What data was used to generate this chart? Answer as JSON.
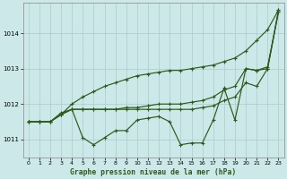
{
  "title": "Graphe pression niveau de la mer (hPa)",
  "bg_color": "#cce8e8",
  "grid_color": "#aacccc",
  "line_color": "#2d5a1b",
  "ylim": [
    1010.5,
    1014.85
  ],
  "yticks": [
    1011,
    1012,
    1013,
    1014
  ],
  "hours": [
    0,
    1,
    2,
    3,
    4,
    5,
    6,
    7,
    8,
    9,
    10,
    11,
    12,
    13,
    14,
    15,
    16,
    17,
    18,
    19,
    20,
    21,
    22,
    23
  ],
  "line_straight": [
    1011.5,
    1011.5,
    1011.5,
    1011.7,
    1012.0,
    1012.2,
    1012.35,
    1012.5,
    1012.6,
    1012.7,
    1012.8,
    1012.85,
    1012.9,
    1012.95,
    1012.95,
    1013.0,
    1013.05,
    1013.1,
    1013.2,
    1013.3,
    1013.5,
    1013.8,
    1014.1,
    1014.65
  ],
  "line_mid1": [
    1011.5,
    1011.5,
    1011.5,
    1011.7,
    1011.85,
    1011.85,
    1011.85,
    1011.85,
    1011.85,
    1011.9,
    1011.9,
    1011.95,
    1012.0,
    1012.0,
    1012.0,
    1012.05,
    1012.1,
    1012.2,
    1012.4,
    1012.5,
    1013.0,
    1012.95,
    1013.05,
    1014.6
  ],
  "line_mid2": [
    1011.5,
    1011.5,
    1011.5,
    1011.7,
    1011.85,
    1011.85,
    1011.85,
    1011.85,
    1011.85,
    1011.85,
    1011.85,
    1011.85,
    1011.85,
    1011.85,
    1011.85,
    1011.85,
    1011.9,
    1011.95,
    1012.1,
    1012.2,
    1012.6,
    1012.5,
    1013.0,
    1014.6
  ],
  "line_main": [
    1011.5,
    1011.5,
    1011.5,
    1011.75,
    1011.85,
    1011.05,
    1010.85,
    1011.05,
    1011.25,
    1011.25,
    1011.55,
    1011.6,
    1011.65,
    1011.5,
    1010.85,
    1010.9,
    1010.9,
    1011.55,
    1012.45,
    1011.55,
    1013.0,
    1012.95,
    1013.0,
    1014.65
  ]
}
